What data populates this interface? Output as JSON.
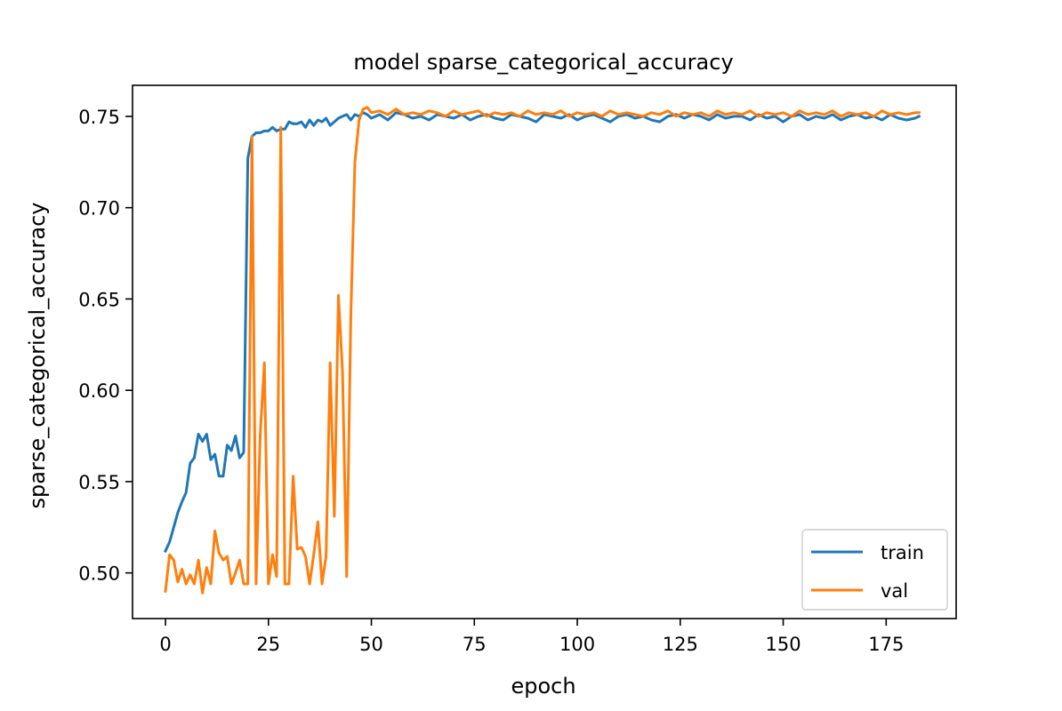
{
  "chart_data": {
    "type": "line",
    "title": "model sparse_categorical_accuracy",
    "xlabel": "epoch",
    "ylabel": "sparse_categorical_accuracy",
    "xlim": [
      -8,
      192
    ],
    "ylim": [
      0.475,
      0.767
    ],
    "xticks": [
      0,
      25,
      50,
      75,
      100,
      125,
      150,
      175
    ],
    "yticks": [
      0.5,
      0.55,
      0.6,
      0.65,
      0.7,
      0.75
    ],
    "ytick_labels": [
      "0.50",
      "0.55",
      "0.60",
      "0.65",
      "0.70",
      "0.75"
    ],
    "grid": false,
    "legend_position": "lower right",
    "series": [
      {
        "name": "train",
        "color": "#1f77b4",
        "x": [
          0,
          1,
          2,
          3,
          4,
          5,
          6,
          7,
          8,
          9,
          10,
          11,
          12,
          13,
          14,
          15,
          16,
          17,
          18,
          19,
          20,
          21,
          22,
          23,
          24,
          25,
          26,
          27,
          28,
          29,
          30,
          31,
          32,
          33,
          34,
          35,
          36,
          37,
          38,
          39,
          40,
          41,
          42,
          43,
          44,
          45,
          46,
          47,
          48,
          49,
          50,
          52,
          54,
          56,
          58,
          60,
          62,
          64,
          66,
          68,
          70,
          72,
          74,
          76,
          78,
          80,
          82,
          84,
          86,
          88,
          90,
          92,
          94,
          96,
          98,
          100,
          102,
          104,
          106,
          108,
          110,
          112,
          114,
          116,
          118,
          120,
          122,
          124,
          126,
          128,
          130,
          132,
          134,
          136,
          138,
          140,
          142,
          144,
          146,
          148,
          150,
          152,
          154,
          156,
          158,
          160,
          162,
          164,
          166,
          168,
          170,
          172,
          174,
          176,
          178,
          180,
          182,
          183
        ],
        "y": [
          0.512,
          0.517,
          0.525,
          0.533,
          0.539,
          0.544,
          0.56,
          0.563,
          0.576,
          0.572,
          0.576,
          0.562,
          0.565,
          0.553,
          0.553,
          0.57,
          0.567,
          0.575,
          0.563,
          0.566,
          0.727,
          0.739,
          0.741,
          0.741,
          0.742,
          0.742,
          0.744,
          0.742,
          0.743,
          0.743,
          0.747,
          0.746,
          0.746,
          0.747,
          0.744,
          0.748,
          0.745,
          0.748,
          0.747,
          0.749,
          0.745,
          0.747,
          0.749,
          0.75,
          0.751,
          0.748,
          0.751,
          0.75,
          0.752,
          0.751,
          0.749,
          0.751,
          0.748,
          0.752,
          0.751,
          0.749,
          0.75,
          0.748,
          0.751,
          0.75,
          0.749,
          0.751,
          0.748,
          0.75,
          0.751,
          0.749,
          0.748,
          0.751,
          0.75,
          0.749,
          0.747,
          0.751,
          0.75,
          0.749,
          0.751,
          0.748,
          0.75,
          0.751,
          0.749,
          0.747,
          0.75,
          0.751,
          0.749,
          0.75,
          0.748,
          0.747,
          0.75,
          0.751,
          0.749,
          0.751,
          0.75,
          0.748,
          0.751,
          0.749,
          0.75,
          0.75,
          0.748,
          0.751,
          0.749,
          0.75,
          0.747,
          0.75,
          0.751,
          0.748,
          0.75,
          0.749,
          0.751,
          0.748,
          0.75,
          0.751,
          0.749,
          0.75,
          0.748,
          0.751,
          0.749,
          0.748,
          0.749,
          0.75
        ]
      },
      {
        "name": "val",
        "color": "#ff7f0e",
        "x": [
          0,
          1,
          2,
          3,
          4,
          5,
          6,
          7,
          8,
          9,
          10,
          11,
          12,
          13,
          14,
          15,
          16,
          17,
          18,
          19,
          20,
          21,
          22,
          23,
          24,
          25,
          26,
          27,
          28,
          29,
          30,
          31,
          32,
          33,
          34,
          35,
          36,
          37,
          38,
          39,
          40,
          41,
          42,
          43,
          44,
          45,
          46,
          47,
          48,
          49,
          50,
          52,
          54,
          56,
          58,
          60,
          62,
          64,
          66,
          68,
          70,
          72,
          74,
          76,
          78,
          80,
          82,
          84,
          86,
          88,
          90,
          92,
          94,
          96,
          98,
          100,
          102,
          104,
          106,
          108,
          110,
          112,
          114,
          116,
          118,
          120,
          122,
          124,
          126,
          128,
          130,
          132,
          134,
          136,
          138,
          140,
          142,
          144,
          146,
          148,
          150,
          152,
          154,
          156,
          158,
          160,
          162,
          164,
          166,
          168,
          170,
          172,
          174,
          176,
          178,
          180,
          182,
          183
        ],
        "y": [
          0.49,
          0.51,
          0.507,
          0.495,
          0.502,
          0.494,
          0.499,
          0.494,
          0.507,
          0.489,
          0.503,
          0.494,
          0.523,
          0.511,
          0.507,
          0.509,
          0.494,
          0.5,
          0.507,
          0.494,
          0.494,
          0.739,
          0.494,
          0.575,
          0.615,
          0.494,
          0.51,
          0.498,
          0.744,
          0.494,
          0.494,
          0.553,
          0.513,
          0.514,
          0.509,
          0.494,
          0.51,
          0.528,
          0.494,
          0.509,
          0.615,
          0.531,
          0.652,
          0.61,
          0.498,
          0.64,
          0.725,
          0.748,
          0.754,
          0.755,
          0.752,
          0.753,
          0.751,
          0.754,
          0.751,
          0.752,
          0.751,
          0.753,
          0.752,
          0.75,
          0.753,
          0.751,
          0.752,
          0.753,
          0.75,
          0.752,
          0.751,
          0.752,
          0.75,
          0.753,
          0.751,
          0.752,
          0.751,
          0.753,
          0.75,
          0.752,
          0.751,
          0.752,
          0.75,
          0.753,
          0.751,
          0.752,
          0.751,
          0.75,
          0.752,
          0.751,
          0.753,
          0.75,
          0.752,
          0.751,
          0.752,
          0.75,
          0.753,
          0.751,
          0.752,
          0.751,
          0.753,
          0.75,
          0.752,
          0.751,
          0.752,
          0.75,
          0.753,
          0.751,
          0.752,
          0.751,
          0.753,
          0.75,
          0.752,
          0.751,
          0.752,
          0.75,
          0.753,
          0.751,
          0.752,
          0.751,
          0.752,
          0.752
        ]
      }
    ]
  }
}
